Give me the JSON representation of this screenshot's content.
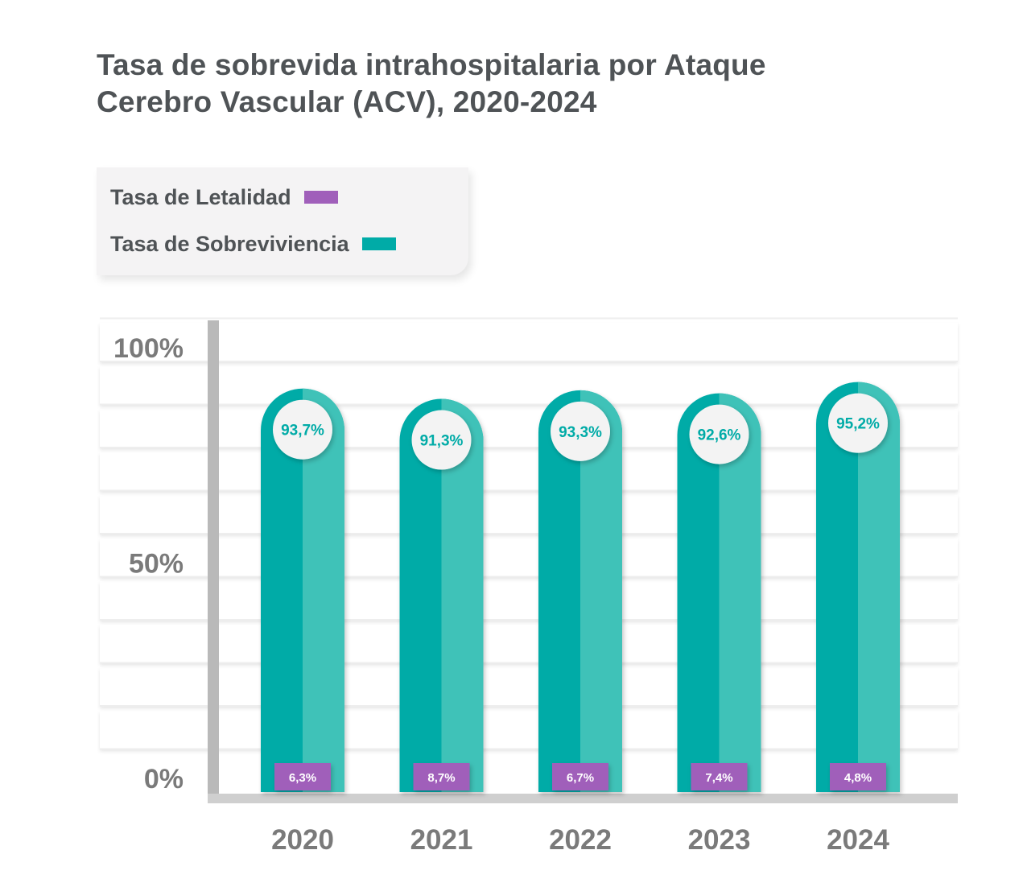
{
  "title": {
    "line1": "Tasa de sobrevida intrahospitalaria por Ataque",
    "line2": "Cerebro Vascular (ACV), 2020-2024"
  },
  "legend": {
    "items": [
      {
        "label": "Tasa de Letalidad",
        "color": "#a05fba"
      },
      {
        "label": "Tasa de Sobreviviencia",
        "color": "#00aba7"
      }
    ]
  },
  "chart_data": {
    "type": "bar",
    "categories": [
      "2020",
      "2021",
      "2022",
      "2023",
      "2024"
    ],
    "series": [
      {
        "name": "Tasa de Sobreviviencia",
        "values": [
          93.7,
          91.3,
          93.3,
          92.6,
          95.2
        ],
        "labels": [
          "93,7%",
          "91,3%",
          "93,3%",
          "92,6%",
          "95,2%"
        ]
      },
      {
        "name": "Tasa de Letalidad",
        "values": [
          6.3,
          8.7,
          6.7,
          7.4,
          4.8
        ],
        "labels": [
          "6,3%",
          "8,7%",
          "6,7%",
          "7,4%",
          "4,8%"
        ]
      }
    ],
    "ylim": [
      0,
      100
    ],
    "yticks": [
      0,
      50,
      100
    ],
    "ytick_labels": [
      "0%",
      "50%",
      "100%"
    ],
    "grid": true,
    "colors": {
      "bar_dark": "#00aba7",
      "bar_light": "#3fc2b8",
      "letalidad": "#a05fba",
      "label_text": "#00aba7",
      "axis": "#b9b9b9",
      "tick_text": "#7a7a7a"
    }
  }
}
